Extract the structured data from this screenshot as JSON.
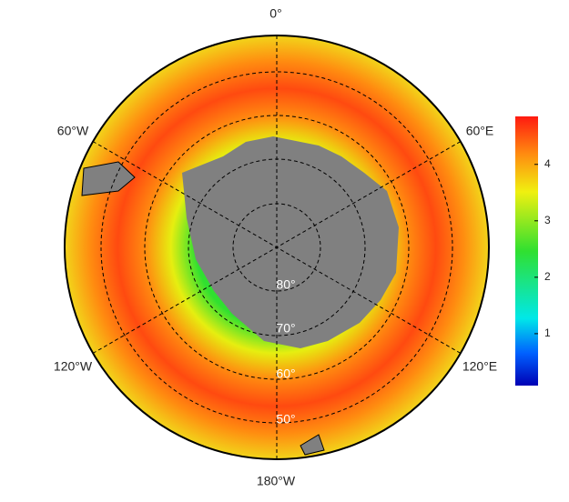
{
  "map": {
    "longitude_labels": [
      "0°",
      "60°W",
      "60°E",
      "120°W",
      "120°E",
      "180°W"
    ],
    "latitude_labels": [
      "80°",
      "70°",
      "60°",
      "50°"
    ]
  },
  "colorbar": {
    "range": [
      0.08,
      4.85
    ],
    "ticks": [
      1,
      2,
      3,
      4
    ]
  }
}
